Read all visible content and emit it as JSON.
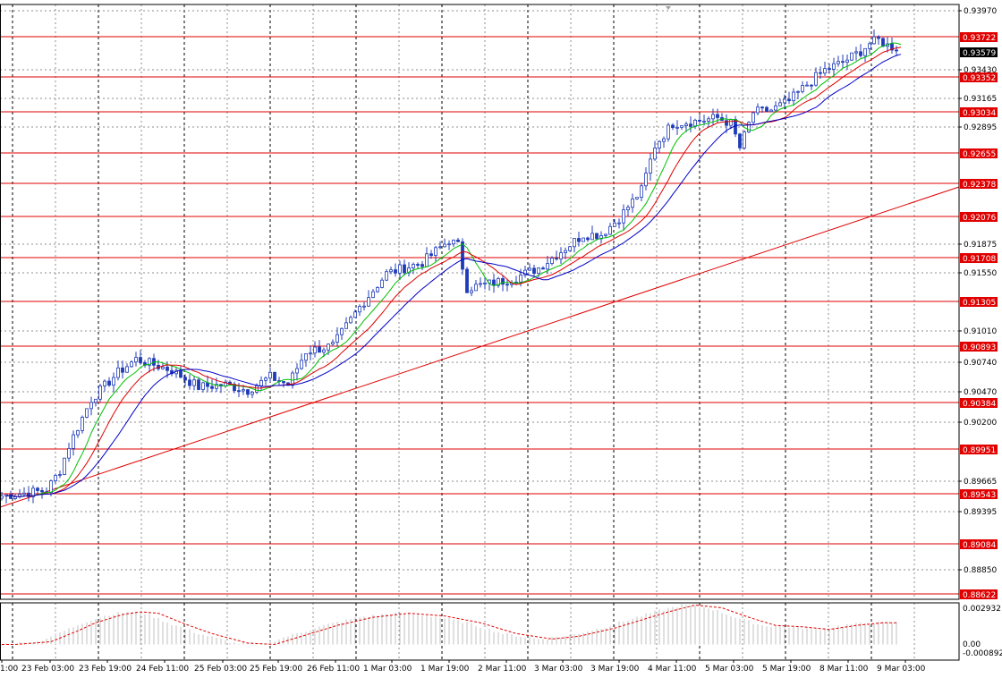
{
  "colors": {
    "candle": "#1f3bb8",
    "level_line": "#e00000",
    "level_label_bg": "#e00000",
    "trendline": "#e00000",
    "ma_fast": "#00c000",
    "ma_mid": "#e00000",
    "ma_slow": "#0000c8",
    "grid": "#8c8c8c",
    "current_bg": "#000000",
    "osc_bars": "#c0c0c0",
    "osc_signal": "#e00000"
  },
  "chart_data": {
    "type": "candlestick",
    "price_axis_labels": [
      "0.93970",
      "0.93430",
      "0.93165",
      "0.92895",
      "0.91875",
      "0.91550",
      "0.91010",
      "0.90740",
      "0.90470",
      "0.90200",
      "0.89665",
      "0.89395",
      "0.88850"
    ],
    "price_range": [
      0.88622,
      0.9397
    ],
    "level_lines": [
      "0.93722",
      "0.93352",
      "0.93034",
      "0.92655",
      "0.92378",
      "0.92076",
      "0.91708",
      "0.91305",
      "0.90893",
      "0.90384",
      "0.89951",
      "0.89543",
      "0.89084",
      "0.88622"
    ],
    "current_price": "0.93579",
    "time_labels": [
      "1:00",
      "23 Feb 03:00",
      "23 Feb 19:00",
      "24 Feb 11:00",
      "25 Feb 03:00",
      "25 Feb 19:00",
      "26 Feb 11:00",
      "1 Mar 03:00",
      "1 Mar 19:00",
      "2 Mar 11:00",
      "3 Mar 03:00",
      "3 Mar 19:00",
      "4 Mar 11:00",
      "5 Mar 03:00",
      "5 Mar 19:00",
      "8 Mar 11:00",
      "9 Mar 03:00"
    ],
    "close_anchors": [
      [
        0,
        0.8955
      ],
      [
        10,
        0.896
      ],
      [
        13,
        0.8978
      ],
      [
        15,
        0.9
      ],
      [
        20,
        0.9042
      ],
      [
        26,
        0.9066
      ],
      [
        30,
        0.9078
      ],
      [
        38,
        0.9068
      ],
      [
        44,
        0.9053
      ],
      [
        50,
        0.9055
      ],
      [
        55,
        0.905
      ],
      [
        60,
        0.9062
      ],
      [
        64,
        0.9055
      ],
      [
        68,
        0.9085
      ],
      [
        74,
        0.909
      ],
      [
        80,
        0.9125
      ],
      [
        86,
        0.9155
      ],
      [
        94,
        0.9165
      ],
      [
        100,
        0.9185
      ],
      [
        102,
        0.918
      ],
      [
        104,
        0.9142
      ],
      [
        108,
        0.9145
      ],
      [
        114,
        0.915
      ],
      [
        120,
        0.916
      ],
      [
        126,
        0.9178
      ],
      [
        130,
        0.919
      ],
      [
        134,
        0.919
      ],
      [
        138,
        0.9205
      ],
      [
        143,
        0.923
      ],
      [
        146,
        0.927
      ],
      [
        150,
        0.929
      ],
      [
        155,
        0.9292
      ],
      [
        160,
        0.9295
      ],
      [
        163,
        0.929
      ],
      [
        165,
        0.9268
      ],
      [
        168,
        0.93
      ],
      [
        172,
        0.9302
      ],
      [
        176,
        0.931
      ],
      [
        180,
        0.9325
      ],
      [
        184,
        0.9338
      ],
      [
        188,
        0.9345
      ],
      [
        192,
        0.9355
      ],
      [
        194,
        0.9362
      ],
      [
        196,
        0.9365
      ],
      [
        198,
        0.936
      ],
      [
        200,
        0.9358
      ]
    ],
    "indicators": [
      "moving-average-fast",
      "moving-average-mid",
      "moving-average-slow",
      "trendline"
    ],
    "oscillator": {
      "axis_labels": [
        "0.002932",
        "0.00",
        "-0.000892"
      ],
      "range": [
        -0.000892,
        0.002932
      ],
      "histogram_anchors": [
        [
          0,
          0.0
        ],
        [
          8,
          0.0002
        ],
        [
          14,
          0.001
        ],
        [
          18,
          0.0016
        ],
        [
          24,
          0.0022
        ],
        [
          28,
          0.0024
        ],
        [
          32,
          0.0023
        ],
        [
          38,
          0.0015
        ],
        [
          44,
          0.0008
        ],
        [
          52,
          0.0001
        ],
        [
          58,
          0.0
        ],
        [
          64,
          0.0006
        ],
        [
          72,
          0.0014
        ],
        [
          80,
          0.002
        ],
        [
          88,
          0.0023
        ],
        [
          96,
          0.0021
        ],
        [
          104,
          0.0016
        ],
        [
          112,
          0.0008
        ],
        [
          120,
          0.0004
        ],
        [
          126,
          0.0006
        ],
        [
          134,
          0.0012
        ],
        [
          140,
          0.0018
        ],
        [
          146,
          0.0024
        ],
        [
          152,
          0.0029
        ],
        [
          158,
          0.0027
        ],
        [
          164,
          0.002
        ],
        [
          170,
          0.0014
        ],
        [
          176,
          0.0013
        ],
        [
          182,
          0.0011
        ],
        [
          188,
          0.0014
        ],
        [
          194,
          0.0016
        ],
        [
          200,
          0.0016
        ]
      ]
    }
  }
}
